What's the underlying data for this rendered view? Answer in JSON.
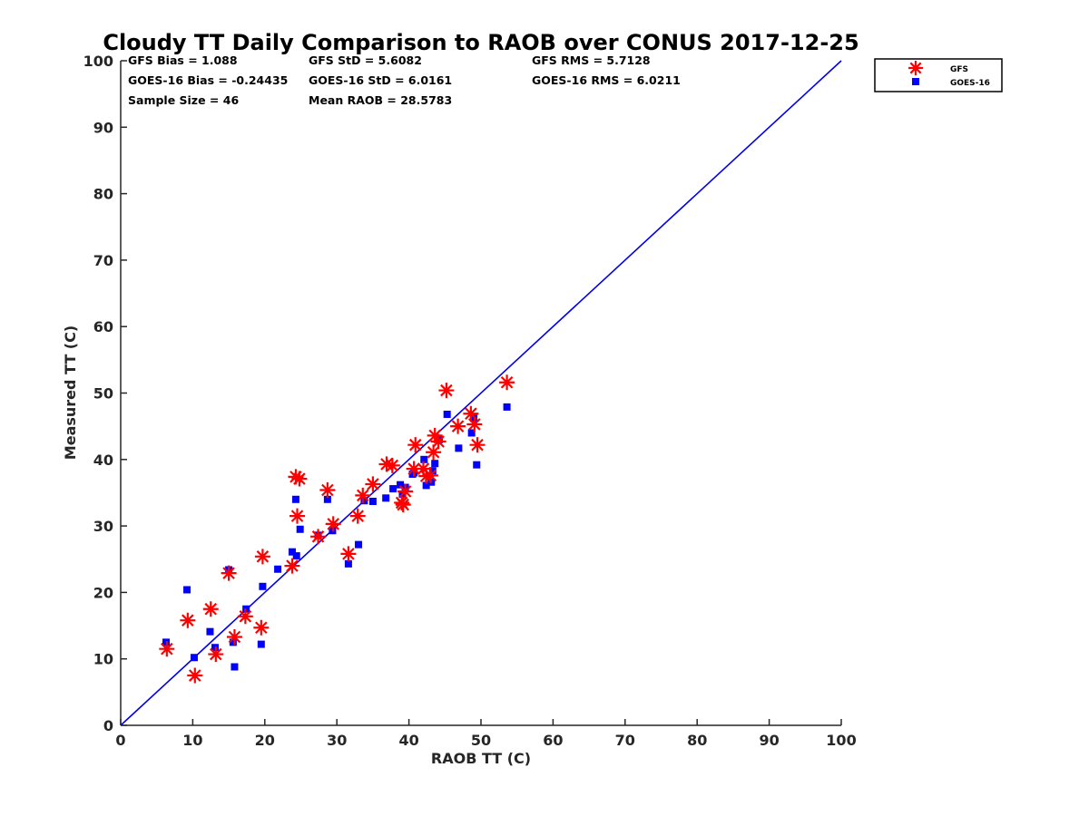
{
  "chart_data": {
    "type": "scatter",
    "title": "Cloudy TT Daily Comparison to RAOB over CONUS 2017-12-25",
    "xlabel": "RAOB TT (C)",
    "ylabel": "Measured TT (C)",
    "xlim": [
      0,
      100
    ],
    "ylim": [
      0,
      100
    ],
    "xticks": [
      "0",
      "10",
      "20",
      "30",
      "40",
      "50",
      "60",
      "70",
      "80",
      "90",
      "100"
    ],
    "yticks": [
      "0",
      "10",
      "20",
      "30",
      "40",
      "50",
      "60",
      "70",
      "80",
      "90",
      "100"
    ],
    "grid": false,
    "legend_position": "top-right",
    "stats": [
      "GFS Bias = 1.088",
      "GOES-16 Bias = -0.24435",
      "Sample Size = 46",
      "GFS StD = 5.6082",
      "GOES-16 StD = 6.0161",
      "Mean RAOB = 28.5783",
      "GFS RMS = 5.7128",
      "GOES-16 RMS = 6.0211"
    ],
    "reference_line": {
      "x": [
        0,
        100
      ],
      "y": [
        0,
        100
      ],
      "color": "#0000ee"
    },
    "series": [
      {
        "name": "GFS",
        "marker": "asterisk",
        "color": "#ff0000",
        "x": [
          6.4,
          9.3,
          10.3,
          12.5,
          13.2,
          15.0,
          15.8,
          17.3,
          19.5,
          19.7,
          23.8,
          24.3,
          24.5,
          24.8,
          27.4,
          28.7,
          29.5,
          31.6,
          32.9,
          33.6,
          35.0,
          36.9,
          37.7,
          39.0,
          39.2,
          39.5,
          40.7,
          40.9,
          42.0,
          42.4,
          43.0,
          43.4,
          43.6,
          44.1,
          45.2,
          46.8,
          48.6,
          49.1,
          49.5,
          53.6
        ],
        "y": [
          11.5,
          15.8,
          7.5,
          17.5,
          10.7,
          22.9,
          13.3,
          16.4,
          14.7,
          25.4,
          24.0,
          37.4,
          31.5,
          37.1,
          28.4,
          35.4,
          30.3,
          25.8,
          31.5,
          34.6,
          36.3,
          39.3,
          39.1,
          33.5,
          33.2,
          35.2,
          38.6,
          42.2,
          38.6,
          37.5,
          37.6,
          41.1,
          43.6,
          42.7,
          50.4,
          45.0,
          46.9,
          45.3,
          42.2,
          51.6
        ]
      },
      {
        "name": "GOES-16",
        "marker": "square",
        "color": "#0000ff",
        "x": [
          6.3,
          9.2,
          10.2,
          12.4,
          13.1,
          15.0,
          15.6,
          15.8,
          17.4,
          19.5,
          19.7,
          21.8,
          23.8,
          24.3,
          24.4,
          24.9,
          27.4,
          28.7,
          29.4,
          31.6,
          33.0,
          33.8,
          35.0,
          36.8,
          37.8,
          38.8,
          39.1,
          39.5,
          40.5,
          40.7,
          42.1,
          42.4,
          43.1,
          43.3,
          43.6,
          44.2,
          45.3,
          46.9,
          48.7,
          49.0,
          49.4,
          53.6
        ],
        "y": [
          12.5,
          20.4,
          10.2,
          14.1,
          11.7,
          23.4,
          12.5,
          8.8,
          17.5,
          12.2,
          20.9,
          23.5,
          26.1,
          34.0,
          25.5,
          29.5,
          28.6,
          34.0,
          29.3,
          24.3,
          27.2,
          33.8,
          33.7,
          34.2,
          35.6,
          36.2,
          34.8,
          35.8,
          37.8,
          38.0,
          40.0,
          36.1,
          36.6,
          38.3,
          39.4,
          43.0,
          46.8,
          41.7,
          44.0,
          46.2,
          39.2,
          47.9
        ]
      }
    ]
  }
}
